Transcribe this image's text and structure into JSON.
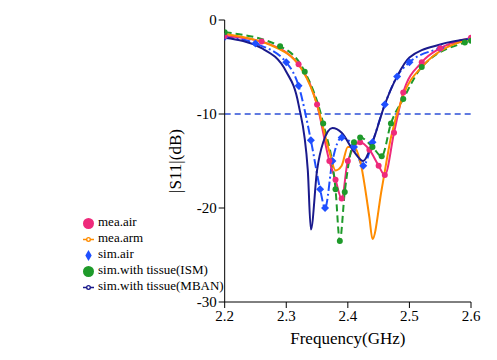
{
  "chart_data": {
    "type": "line",
    "x_label": "Frequency(GHz)",
    "y_label": "|S11|(dB)",
    "xlim": [
      2.2,
      2.6
    ],
    "xticks": [
      2.2,
      2.3,
      2.4,
      2.5,
      2.6
    ],
    "ylim": [
      -30,
      0
    ],
    "yticks": [
      -30,
      -20,
      -10,
      0
    ],
    "hline": -10,
    "grid": false,
    "legend": "lower left",
    "series": [
      {
        "name": "sim.air",
        "color": "#1f4fff",
        "line_style": "dashdot",
        "marker": "diamond",
        "x": [
          2.2,
          2.25,
          2.3,
          2.32,
          2.34,
          2.355,
          2.363,
          2.375,
          2.39,
          2.41,
          2.425,
          2.44,
          2.46,
          2.48,
          2.5,
          2.55,
          2.6
        ],
        "values": [
          -1.8,
          -2.5,
          -4.5,
          -7,
          -12.8,
          -18,
          -20,
          -15,
          -12.5,
          -13.5,
          -15.5,
          -13,
          -9,
          -6,
          -4.5,
          -3,
          -2
        ]
      },
      {
        "name": "mea.air",
        "color": "#ee2a7b",
        "line_style": "solid",
        "marker": "circle",
        "x": [
          2.2,
          2.26,
          2.32,
          2.35,
          2.37,
          2.38,
          2.39,
          2.4,
          2.42,
          2.435,
          2.45,
          2.46,
          2.475,
          2.49,
          2.52,
          2.55,
          2.6
        ],
        "values": [
          -1.7,
          -2.3,
          -4.7,
          -9,
          -15,
          -17,
          -19,
          -15,
          -13,
          -13.8,
          -15.5,
          -16.5,
          -12,
          -7.7,
          -4.5,
          -3,
          -1.9
        ]
      },
      {
        "name": "sim.with tissue(ISM)",
        "color": "#1e9a2a",
        "line_style": "dashed",
        "marker": "circle",
        "x": [
          2.2,
          2.29,
          2.33,
          2.36,
          2.38,
          2.387,
          2.395,
          2.41,
          2.42,
          2.44,
          2.455,
          2.47,
          2.49,
          2.52,
          2.59,
          2.6
        ],
        "values": [
          -1.3,
          -2.8,
          -5.5,
          -11,
          -18,
          -23.5,
          -18.3,
          -13,
          -12.5,
          -13.5,
          -14.5,
          -11,
          -8.4,
          -5,
          -2.4,
          -2.2
        ]
      },
      {
        "name": "mea.arm",
        "color": "#ff8c00",
        "line_style": "solid",
        "marker": "none",
        "x": [
          2.2,
          2.3,
          2.35,
          2.37,
          2.38,
          2.39,
          2.4,
          2.41,
          2.42,
          2.435,
          2.44,
          2.455,
          2.47,
          2.49,
          2.52,
          2.6
        ],
        "values": [
          -1.5,
          -3.5,
          -9,
          -14,
          -16,
          -15.5,
          -13.5,
          -13.5,
          -15,
          -21,
          -23.3,
          -18,
          -12.5,
          -8,
          -5,
          -2
        ]
      },
      {
        "name": "sim.with tissue(MBAN)",
        "color": "#1a1a8c",
        "line_style": "solid",
        "marker": "none",
        "x": [
          2.2,
          2.26,
          2.3,
          2.32,
          2.335,
          2.34,
          2.35,
          2.36,
          2.375,
          2.39,
          2.41,
          2.425,
          2.44,
          2.46,
          2.48,
          2.5,
          2.55,
          2.6
        ],
        "values": [
          -1.9,
          -3,
          -5.5,
          -9,
          -16,
          -22.3,
          -16,
          -13,
          -11.5,
          -12,
          -14,
          -15,
          -13,
          -9,
          -6,
          -4,
          -2.6,
          -2
        ]
      }
    ]
  }
}
